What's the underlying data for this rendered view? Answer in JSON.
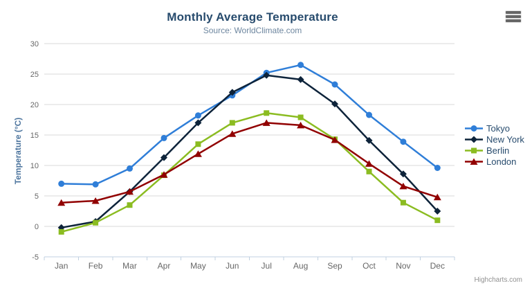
{
  "credits": "Highcharts.com",
  "icons": {
    "context_menu": "hamburger-menu"
  },
  "chart_data": {
    "type": "line",
    "title": "Monthly Average Temperature",
    "subtitle": "Source: WorldClimate.com",
    "xlabel": "",
    "ylabel": "Temperature (°C)",
    "ylim": [
      -5,
      30
    ],
    "yticks": [
      30,
      25,
      20,
      15,
      10,
      5,
      0,
      -5
    ],
    "grid": "horizontal",
    "legend_position": "right",
    "categories": [
      "Jan",
      "Feb",
      "Mar",
      "Apr",
      "May",
      "Jun",
      "Jul",
      "Aug",
      "Sep",
      "Oct",
      "Nov",
      "Dec"
    ],
    "series": [
      {
        "name": "Tokyo",
        "color": "#2f7ed8",
        "marker": "circle",
        "values": [
          7.0,
          6.9,
          9.5,
          14.5,
          18.2,
          21.5,
          25.2,
          26.5,
          23.3,
          18.3,
          13.9,
          9.6
        ]
      },
      {
        "name": "New York",
        "color": "#0d233a",
        "marker": "diamond",
        "values": [
          -0.2,
          0.8,
          5.7,
          11.3,
          17.0,
          22.0,
          24.8,
          24.1,
          20.1,
          14.1,
          8.6,
          2.5
        ]
      },
      {
        "name": "Berlin",
        "color": "#8bbc21",
        "marker": "square",
        "values": [
          -0.9,
          0.6,
          3.5,
          8.4,
          13.5,
          17.0,
          18.6,
          17.9,
          14.3,
          9.0,
          3.9,
          1.0
        ]
      },
      {
        "name": "London",
        "color": "#910000",
        "marker": "triangle",
        "values": [
          3.9,
          4.2,
          5.7,
          8.5,
          11.9,
          15.2,
          17.0,
          16.6,
          14.2,
          10.3,
          6.6,
          4.8
        ]
      }
    ]
  }
}
